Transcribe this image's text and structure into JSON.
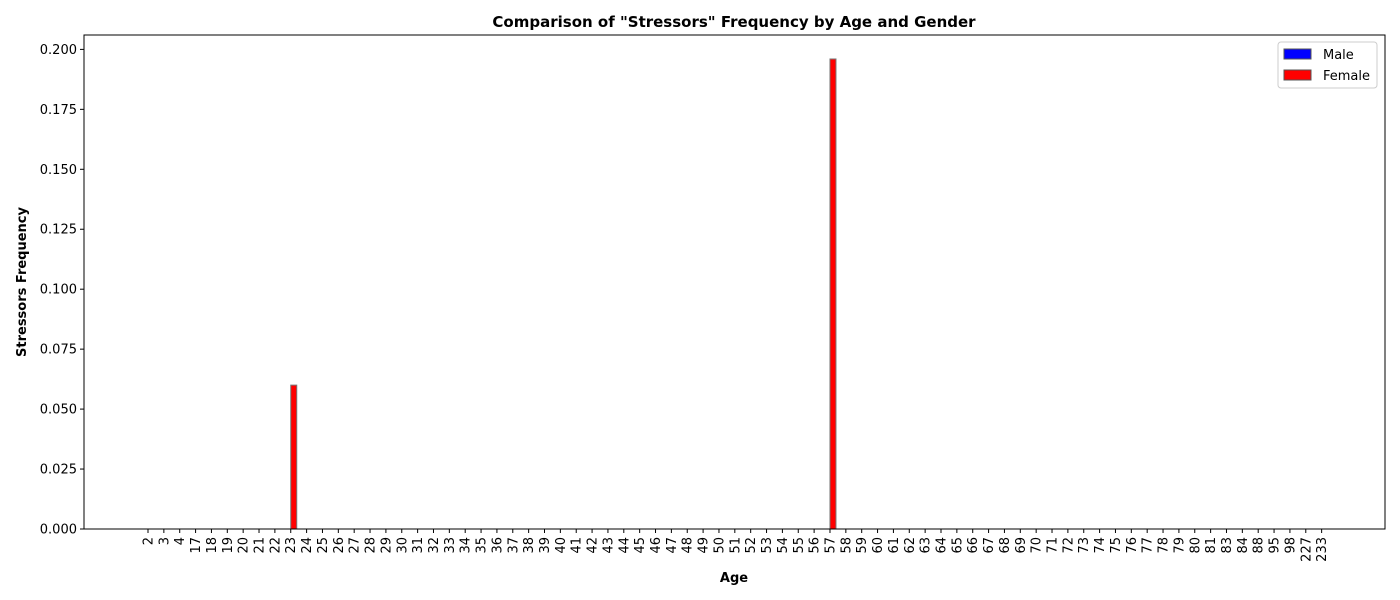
{
  "chart_data": {
    "type": "bar",
    "title": "Comparison of \"Stressors\" Frequency by Age and Gender",
    "xlabel": "Age",
    "ylabel": "Stressors Frequency",
    "ylim": [
      0,
      0.206
    ],
    "yticks": [
      "0.000",
      "0.025",
      "0.050",
      "0.075",
      "0.100",
      "0.125",
      "0.150",
      "0.175",
      "0.200"
    ],
    "grid": false,
    "legend_position": "top-right",
    "categories": [
      "2",
      "3",
      "4",
      "17",
      "18",
      "19",
      "20",
      "21",
      "22",
      "23",
      "24",
      "25",
      "26",
      "27",
      "28",
      "29",
      "30",
      "31",
      "32",
      "33",
      "34",
      "35",
      "36",
      "37",
      "38",
      "39",
      "40",
      "41",
      "42",
      "43",
      "44",
      "45",
      "46",
      "47",
      "48",
      "49",
      "50",
      "51",
      "52",
      "53",
      "54",
      "55",
      "56",
      "57",
      "58",
      "59",
      "60",
      "61",
      "62",
      "63",
      "64",
      "65",
      "66",
      "67",
      "68",
      "69",
      "70",
      "71",
      "72",
      "73",
      "74",
      "75",
      "76",
      "77",
      "78",
      "79",
      "80",
      "81",
      "83",
      "84",
      "88",
      "95",
      "98",
      "227",
      "233"
    ],
    "series": [
      {
        "name": "Male",
        "color": "#0000ff",
        "values": [
          0,
          0,
          0,
          0,
          0,
          0,
          0,
          0,
          0,
          0,
          0,
          0,
          0,
          0,
          0,
          0,
          0,
          0,
          0,
          0,
          0,
          0,
          0,
          0,
          0,
          0,
          0,
          0,
          0,
          0,
          0,
          0,
          0,
          0,
          0,
          0,
          0,
          0,
          0,
          0,
          0,
          0,
          0,
          0,
          0,
          0,
          0,
          0,
          0,
          0,
          0,
          0,
          0,
          0,
          0,
          0,
          0,
          0,
          0,
          0,
          0,
          0,
          0,
          0,
          0,
          0,
          0,
          0,
          0,
          0,
          0,
          0,
          0,
          0,
          0
        ]
      },
      {
        "name": "Female",
        "color": "#ff0000",
        "values": [
          0,
          0,
          0,
          0,
          0,
          0,
          0,
          0,
          0,
          0.06,
          0,
          0,
          0,
          0,
          0,
          0,
          0,
          0,
          0,
          0,
          0,
          0,
          0,
          0,
          0,
          0,
          0,
          0,
          0,
          0,
          0,
          0,
          0,
          0,
          0,
          0,
          0,
          0,
          0,
          0,
          0,
          0,
          0,
          0.196,
          0,
          0,
          0,
          0,
          0,
          0,
          0,
          0,
          0,
          0,
          0,
          0,
          0,
          0,
          0,
          0,
          0,
          0,
          0,
          0,
          0,
          0,
          0,
          0,
          0,
          0,
          0,
          0,
          0,
          0,
          0
        ]
      }
    ]
  }
}
